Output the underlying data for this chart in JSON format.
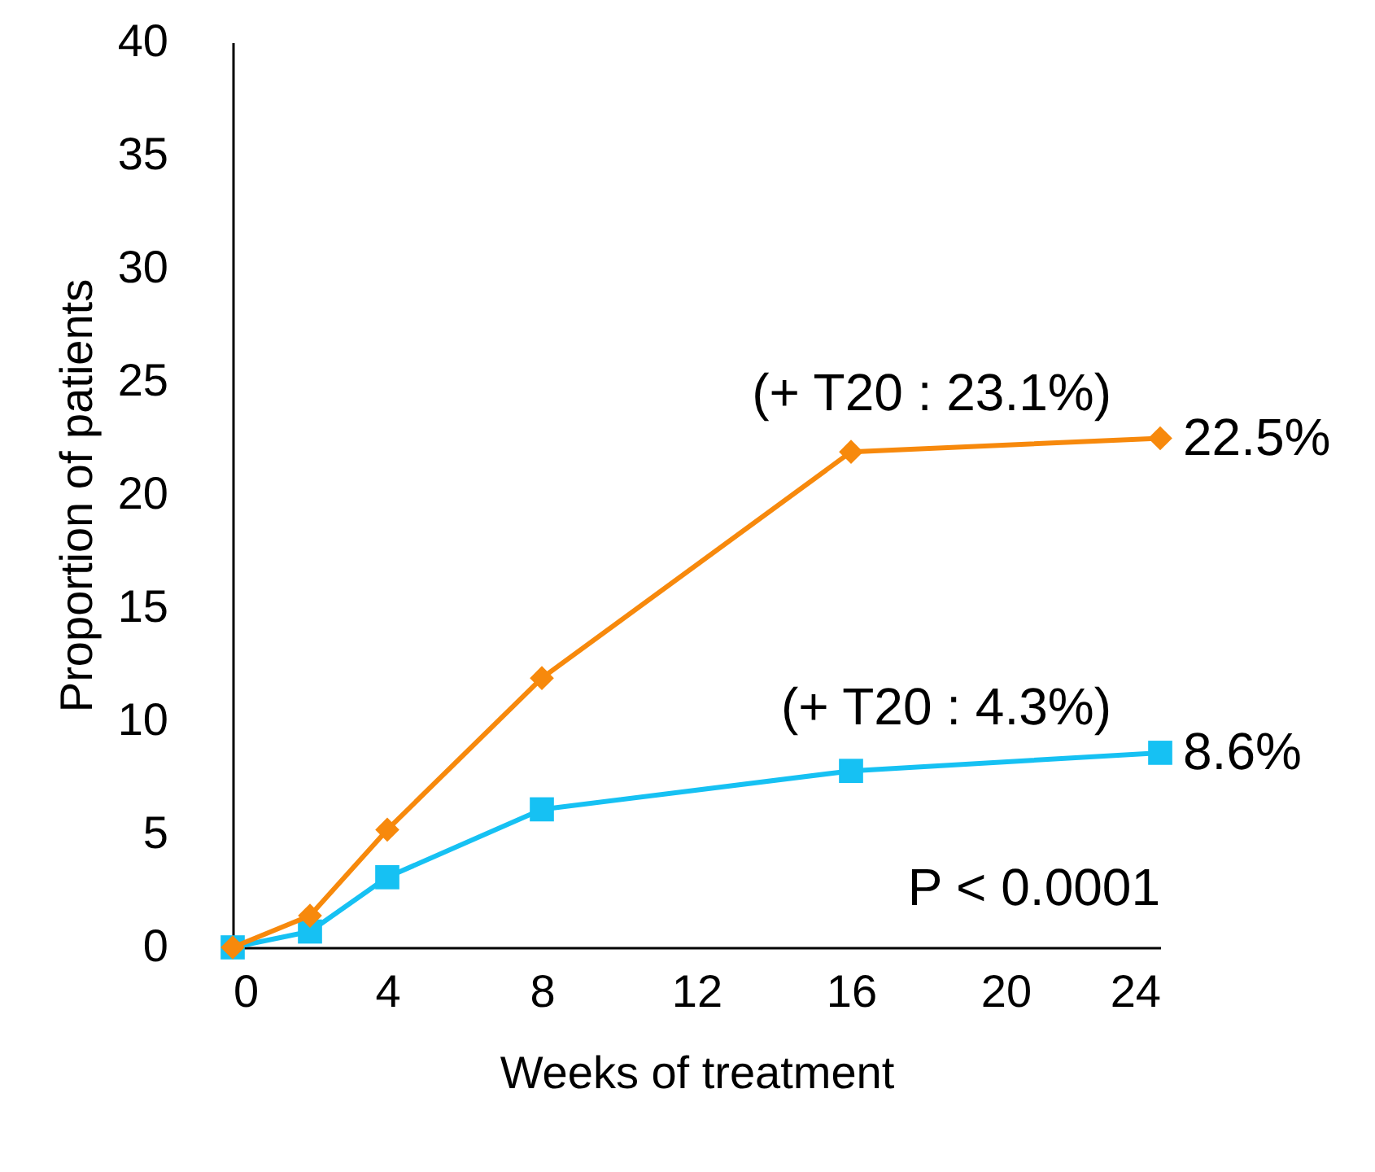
{
  "chart_data": {
    "type": "line",
    "xlabel": "Weeks of treatment",
    "ylabel": "Proportion of patients",
    "x": [
      0,
      2,
      4,
      8,
      16,
      24
    ],
    "xlim": [
      0,
      24
    ],
    "xticks": [
      0,
      4,
      8,
      12,
      16,
      20,
      24
    ],
    "ylim": [
      0,
      40
    ],
    "yticks": [
      0,
      5,
      10,
      15,
      20,
      25,
      30,
      35,
      40
    ],
    "series": [
      {
        "color": "#f7890c",
        "marker": "diamond",
        "values": [
          0,
          1.4,
          5.2,
          11.9,
          21.9,
          22.5
        ],
        "value_labels": [
          null,
          null,
          null,
          null,
          null,
          "22.5%"
        ]
      },
      {
        "color": "#16c1f3",
        "marker": "square",
        "values": [
          0,
          0.7,
          3.1,
          6.1,
          7.8,
          8.6
        ],
        "value_labels": [
          null,
          null,
          null,
          null,
          null,
          "8.6%"
        ]
      }
    ],
    "annotations": [
      "(+ T20 : 23.1%)",
      "(+ T20 :  4.3%)",
      "P < 0.0001"
    ]
  }
}
